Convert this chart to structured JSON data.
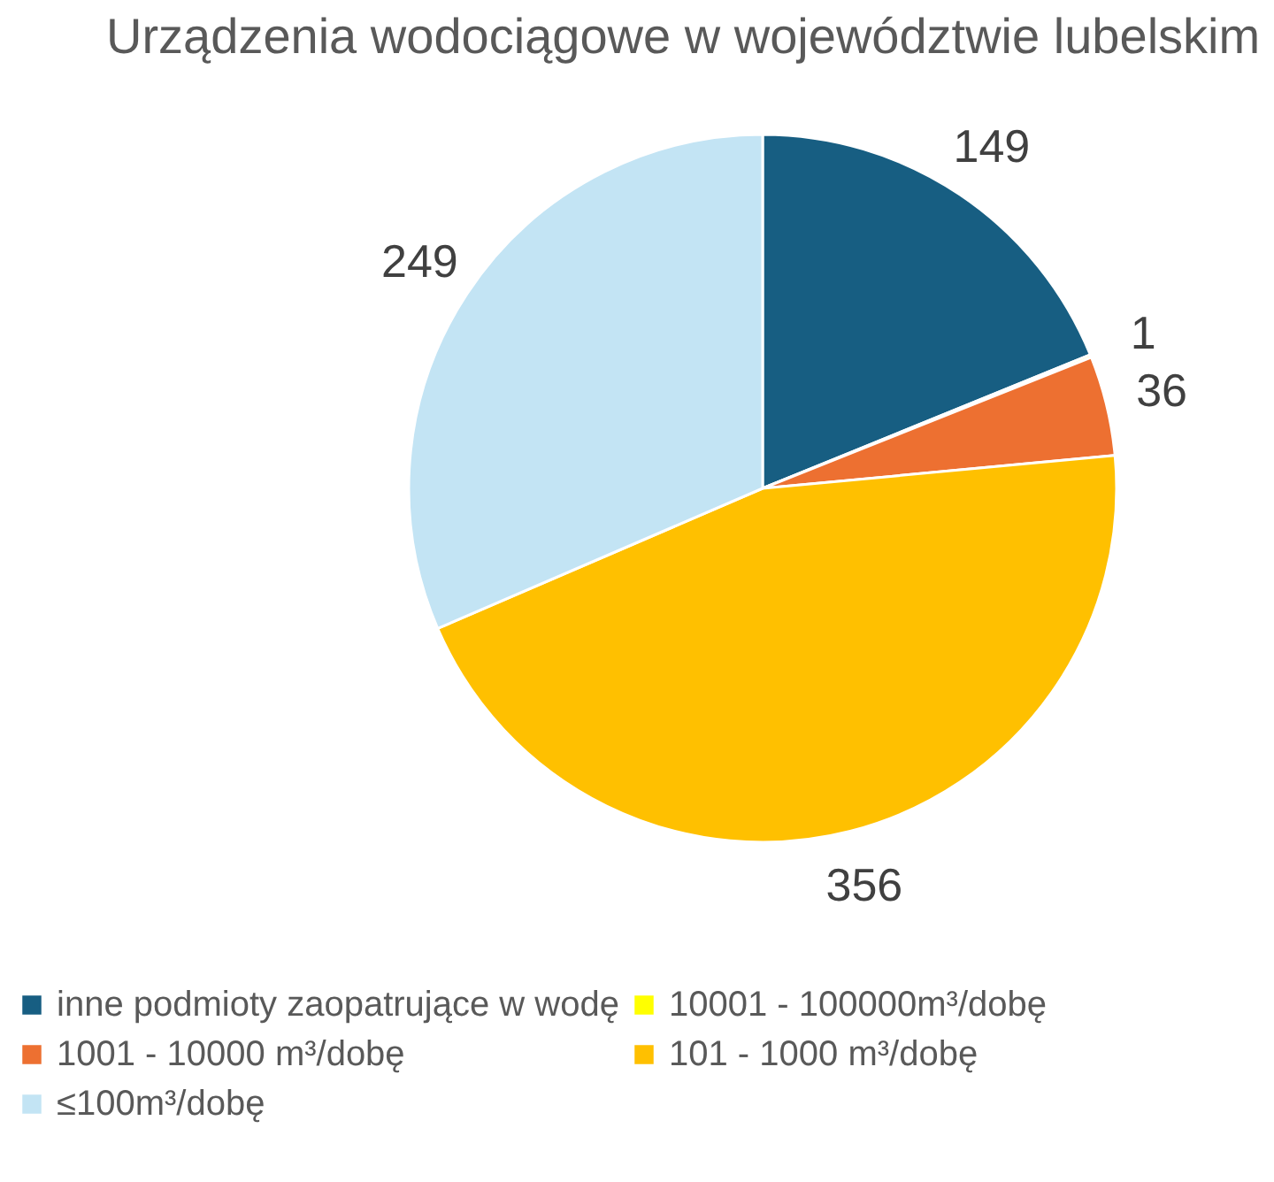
{
  "chart_data": {
    "type": "pie",
    "title": "Urządzenia wodociągowe w województwie lubelskim",
    "categories": [
      "inne podmioty zaopatrujące w wodę",
      "10001 - 100000m³/dobę",
      "1001 - 10000 m³/dobę",
      "101 - 1000 m³/dobę",
      "≤100m³/dobę"
    ],
    "values": [
      149,
      1,
      36,
      356,
      249
    ],
    "colors": [
      "#175e82",
      "#ffff00",
      "#ed7031",
      "#ffc000",
      "#c3e4f4"
    ],
    "data_labels": true,
    "legend": "bottom"
  }
}
